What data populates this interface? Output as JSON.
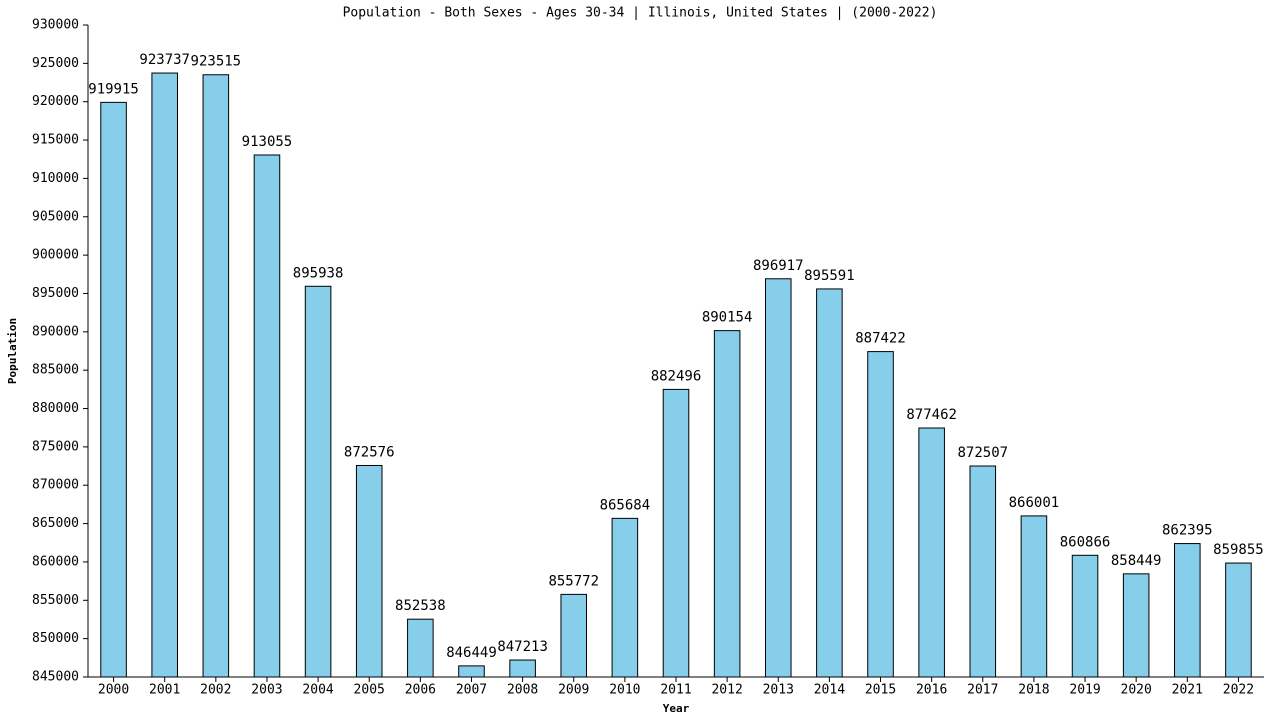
{
  "chart_data": {
    "type": "bar",
    "title": "Population - Both Sexes - Ages 30-34 | Illinois, United States |  (2000-2022)",
    "x_label": "Year",
    "y_label": "Population",
    "categories": [
      "2000",
      "2001",
      "2002",
      "2003",
      "2004",
      "2005",
      "2006",
      "2007",
      "2008",
      "2009",
      "2010",
      "2011",
      "2012",
      "2013",
      "2014",
      "2015",
      "2016",
      "2017",
      "2018",
      "2019",
      "2020",
      "2021",
      "2022"
    ],
    "values": [
      919915,
      923737,
      923515,
      913055,
      895938,
      872576,
      852538,
      846449,
      847213,
      855772,
      865684,
      882496,
      890154,
      896917,
      895591,
      887422,
      877462,
      872507,
      866001,
      860866,
      858449,
      862395,
      859855
    ],
    "color": "#87ceeb",
    "ylim": [
      845000,
      930000
    ],
    "yticks": [
      845000,
      850000,
      855000,
      860000,
      865000,
      870000,
      875000,
      880000,
      885000,
      890000,
      895000,
      900000,
      905000,
      910000,
      915000,
      920000,
      925000,
      930000
    ],
    "grid": false
  }
}
